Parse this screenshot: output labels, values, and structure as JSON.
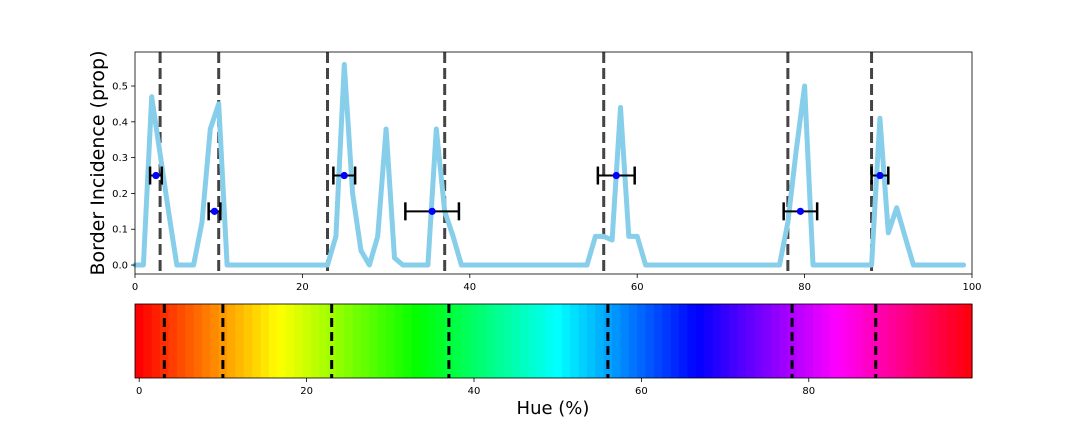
{
  "chart_data": [
    {
      "type": "line",
      "title": "",
      "xlabel": "",
      "ylabel": "Border Incidence (prop)",
      "xlim": [
        0,
        100
      ],
      "ylim": [
        -0.025,
        0.595
      ],
      "xticks": [
        0,
        20,
        40,
        60,
        80,
        100
      ],
      "yticks": [
        0.0,
        0.1,
        0.2,
        0.3,
        0.4,
        0.5
      ],
      "line_color": "#87ceeb",
      "series": [
        {
          "x": [
            0,
            1,
            2,
            3,
            4,
            5,
            6,
            7,
            8,
            9,
            10,
            11,
            12,
            13,
            14,
            15,
            16,
            17,
            18,
            19,
            20,
            21,
            22,
            23,
            24,
            25,
            26,
            27,
            28,
            29,
            30,
            31,
            32,
            33,
            34,
            35,
            36,
            37,
            38,
            39,
            40,
            41,
            42,
            43,
            44,
            45,
            46,
            47,
            48,
            49,
            50,
            51,
            52,
            53,
            54,
            55,
            56,
            57,
            58,
            59,
            60,
            61,
            62,
            63,
            64,
            65,
            66,
            67,
            68,
            69,
            70,
            71,
            72,
            73,
            74,
            75,
            76,
            77,
            78,
            79,
            80,
            81,
            82,
            83,
            84,
            85,
            86,
            87,
            88,
            89,
            90,
            91,
            92,
            93,
            94,
            95,
            96,
            97,
            98,
            99
          ],
          "y": [
            0,
            0,
            0.47,
            0.31,
            0.15,
            0,
            0,
            0,
            0.12,
            0.38,
            0.45,
            0,
            0,
            0,
            0,
            0,
            0,
            0,
            0,
            0,
            0,
            0,
            0,
            0,
            0.08,
            0.56,
            0.2,
            0.04,
            0,
            0.08,
            0.38,
            0.02,
            0,
            0,
            0,
            0,
            0.38,
            0.15,
            0.08,
            0,
            0,
            0,
            0,
            0,
            0,
            0,
            0,
            0,
            0,
            0,
            0,
            0,
            0,
            0,
            0,
            0.08,
            0.08,
            0.07,
            0.44,
            0.08,
            0.08,
            0,
            0,
            0,
            0,
            0,
            0,
            0,
            0,
            0,
            0,
            0,
            0,
            0,
            0,
            0,
            0,
            0,
            0.12,
            0.32,
            0.5,
            0,
            0,
            0,
            0,
            0,
            0,
            0,
            0,
            0.41,
            0.09,
            0.16,
            0.08,
            0,
            0,
            0,
            0,
            0,
            0,
            0
          ]
        }
      ],
      "boundaries": [
        3,
        10,
        23,
        37,
        56,
        78,
        88
      ],
      "boundary_color": "#444444",
      "errorbars": [
        {
          "x": 2.5,
          "y": 0.25,
          "xerr": 0.7
        },
        {
          "x": 9.5,
          "y": 0.15,
          "xerr": 0.7
        },
        {
          "x": 25,
          "y": 0.25,
          "xerr": 1.3
        },
        {
          "x": 35.5,
          "y": 0.15,
          "xerr": 3.2
        },
        {
          "x": 57.5,
          "y": 0.25,
          "xerr": 2.2
        },
        {
          "x": 79.5,
          "y": 0.15,
          "xerr": 2.0
        },
        {
          "x": 89,
          "y": 0.25,
          "xerr": 1.0
        }
      ],
      "marker_color": "#0000ff",
      "errorbar_color": "#000000"
    },
    {
      "type": "heatmap",
      "title": "",
      "xlabel": "Hue (%)",
      "ylabel": "",
      "xlim": [
        -0.5,
        99.5
      ],
      "xticks": [
        0,
        20,
        40,
        60,
        80
      ],
      "colormap": "hsv",
      "cells": 100,
      "boundaries": [
        3,
        10,
        23,
        37,
        56,
        78,
        88
      ],
      "boundary_color": "#000000"
    }
  ]
}
